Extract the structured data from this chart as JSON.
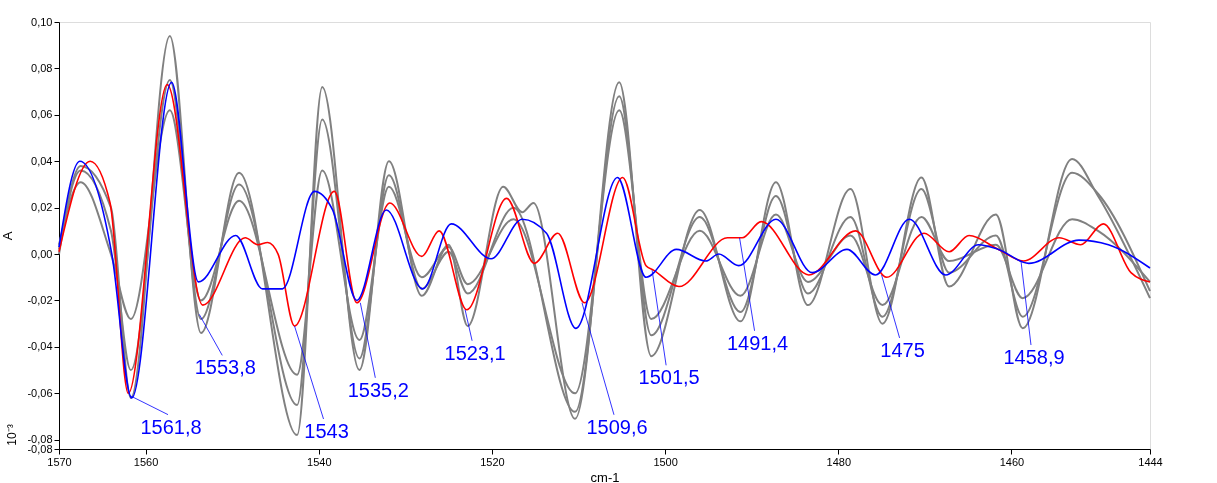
{
  "chart_data": {
    "type": "line",
    "xlabel": "cm-1",
    "ylabel": "A",
    "xlim": [
      1570,
      1444
    ],
    "xticks": [
      1570,
      1560,
      1540,
      1520,
      1500,
      1480,
      1460,
      1444
    ],
    "ylim": [
      -0.084,
      0.1
    ],
    "yticks": [
      {
        "value": 0.1,
        "label": "0,10"
      },
      {
        "value": 0.08,
        "label": "0,08"
      },
      {
        "value": 0.06,
        "label": "0,06"
      },
      {
        "value": 0.04,
        "label": "0,04"
      },
      {
        "value": 0.02,
        "label": "0,02"
      },
      {
        "value": 0.0,
        "label": "0,00"
      },
      {
        "value": -0.02,
        "label": "-0,02"
      },
      {
        "value": -0.04,
        "label": "-0,04"
      },
      {
        "value": -0.06,
        "label": "-0,06"
      },
      {
        "value": -0.08,
        "label": "-0,08"
      },
      {
        "value": -0.084,
        "label": "-0,08"
      }
    ],
    "grid": false,
    "marker": "none",
    "line_style": "solid",
    "series": [
      {
        "color": "#808080",
        "x": [
          1570,
          1567.5,
          1564,
          1561.7,
          1557.2,
          1553.6,
          1549.2,
          1542.5,
          1539.6,
          1535.3,
          1531.9,
          1528.1,
          1525.0,
          1522.8,
          1518.7,
          1516.5,
          1515.2,
          1510.4,
          1505.3,
          1501.6,
          1496.0,
          1491.3,
          1487.2,
          1483.5,
          1478.6,
          1474.9,
          1470.4,
          1467.2,
          1461.8,
          1458.7,
          1453.0,
          1450.0,
          1444
        ],
        "values": [
          0.0,
          0.038,
          0.02,
          -0.062,
          0.094,
          -0.034,
          0.035,
          -0.078,
          0.072,
          -0.05,
          0.04,
          -0.018,
          0.004,
          -0.031,
          0.029,
          0.018,
          0.022,
          -0.071,
          0.074,
          -0.044,
          0.019,
          -0.029,
          0.031,
          -0.022,
          0.028,
          -0.03,
          0.033,
          -0.014,
          0.017,
          -0.032,
          0.041,
          0.025,
          -0.019
        ]
      },
      {
        "color": "#808080",
        "x": [
          1570,
          1567.5,
          1564,
          1561.7,
          1557.2,
          1553.6,
          1549.2,
          1542.5,
          1539.6,
          1535.3,
          1531.9,
          1528.1,
          1525.0,
          1522.8,
          1517.5,
          1510.4,
          1505.3,
          1501.6,
          1496.0,
          1491.3,
          1487.2,
          1483.5,
          1478.6,
          1474.9,
          1470.4,
          1467.2,
          1461.8,
          1458.7,
          1453.0,
          1450.0,
          1444
        ],
        "values": [
          0.002,
          0.036,
          0.01,
          -0.05,
          0.075,
          -0.028,
          0.03,
          -0.065,
          0.058,
          -0.045,
          0.034,
          -0.015,
          0.001,
          -0.017,
          0.02,
          -0.068,
          0.068,
          -0.035,
          0.016,
          -0.025,
          0.025,
          -0.017,
          0.016,
          -0.027,
          0.028,
          -0.008,
          0.008,
          -0.027,
          0.035,
          0.026,
          -0.016
        ]
      },
      {
        "color": "#808080",
        "x": [
          1570,
          1567.5,
          1564,
          1561.7,
          1557.2,
          1553.6,
          1549.2,
          1542.5,
          1539.6,
          1535.3,
          1531.9,
          1528.1,
          1525.0,
          1522.8,
          1517.5,
          1510.4,
          1505.3,
          1501.6,
          1496.0,
          1491.3,
          1487.2,
          1483.5,
          1478.6,
          1474.9,
          1470.4,
          1467.2,
          1461.8,
          1458.7,
          1453.0,
          1450.0,
          1444
        ],
        "values": [
          0.004,
          0.031,
          0.0,
          -0.028,
          0.062,
          -0.02,
          0.023,
          -0.052,
          0.036,
          -0.037,
          0.029,
          -0.01,
          0.003,
          -0.013,
          0.015,
          -0.06,
          0.062,
          -0.028,
          0.01,
          -0.018,
          0.017,
          -0.012,
          0.008,
          -0.022,
          0.016,
          -0.003,
          0.004,
          -0.019,
          0.015,
          0.01,
          -0.012
        ]
      },
      {
        "color": "#ff0000",
        "x": [
          1570,
          1566.4,
          1564.1,
          1562.0,
          1557.5,
          1553.4,
          1548.5,
          1547.0,
          1545.9,
          1544.7,
          1542.8,
          1538.2,
          1535.6,
          1531.8,
          1528.1,
          1526.1,
          1522.9,
          1518.3,
          1515.1,
          1512.4,
          1509.3,
          1504.9,
          1502.2,
          1501.3,
          1498.4,
          1492.8,
          1491.1,
          1488.9,
          1483.4,
          1478.0,
          1474.4,
          1470.1,
          1467.2,
          1464.9,
          1461.5,
          1458.6,
          1454.5,
          1452.0,
          1449.4,
          1446.2,
          1444
        ],
        "values": [
          0.001,
          0.04,
          0.022,
          -0.06,
          0.073,
          -0.022,
          0.007,
          0.004,
          0.005,
          0.0,
          -0.031,
          0.027,
          -0.021,
          0.022,
          -0.001,
          0.01,
          -0.024,
          0.024,
          -0.004,
          0.009,
          -0.021,
          0.033,
          -0.005,
          -0.007,
          -0.014,
          0.007,
          0.007,
          0.014,
          -0.009,
          0.01,
          -0.01,
          0.009,
          0.001,
          0.008,
          0.002,
          -0.003,
          0.007,
          0.004,
          0.013,
          -0.008,
          -0.012
        ]
      },
      {
        "color": "#0000ff",
        "x": [
          1570,
          1567.6,
          1563.9,
          1561.6,
          1557.0,
          1553.9,
          1549.6,
          1546.5,
          1544.2,
          1540.5,
          1538.4,
          1535.6,
          1532.2,
          1528.0,
          1524.7,
          1520.1,
          1516.5,
          1513.7,
          1510.3,
          1505.5,
          1502.2,
          1498.7,
          1495.3,
          1493.8,
          1491.5,
          1487.2,
          1483.0,
          1479.0,
          1475.7,
          1471.8,
          1467.6,
          1463.8,
          1461.5,
          1458.0,
          1452.2,
          1448.8,
          1444
        ],
        "values": [
          0.003,
          0.04,
          0.0,
          -0.062,
          0.074,
          -0.012,
          0.008,
          -0.015,
          -0.015,
          0.027,
          0.019,
          -0.02,
          0.019,
          -0.015,
          0.013,
          -0.002,
          0.015,
          0.009,
          -0.032,
          0.033,
          -0.01,
          0.002,
          -0.003,
          0.0,
          -0.005,
          0.015,
          -0.008,
          0.002,
          -0.009,
          0.015,
          -0.009,
          0.004,
          0.002,
          -0.004,
          0.006,
          0.004,
          -0.006
        ]
      }
    ],
    "annotations": [
      {
        "text": "1561,8",
        "x": 1561.8,
        "y": -0.061
      },
      {
        "text": "1553,8",
        "x": 1553.8,
        "y": -0.026
      },
      {
        "text": "1543",
        "x": 1542.8,
        "y": -0.031
      },
      {
        "text": "1535,2",
        "x": 1535.2,
        "y": -0.021
      },
      {
        "text": "1523,1",
        "x": 1523.1,
        "y": -0.024
      },
      {
        "text": "1509,6",
        "x": 1509.6,
        "y": -0.021
      },
      {
        "text": "1501,5",
        "x": 1501.5,
        "y": -0.007
      },
      {
        "text": "1491,4",
        "x": 1491.4,
        "y": 0.007
      },
      {
        "text": "1475",
        "x": 1475,
        "y": -0.009
      },
      {
        "text": "1458,9",
        "x": 1458.9,
        "y": -0.003
      },
      "10⁻³"
    ]
  }
}
